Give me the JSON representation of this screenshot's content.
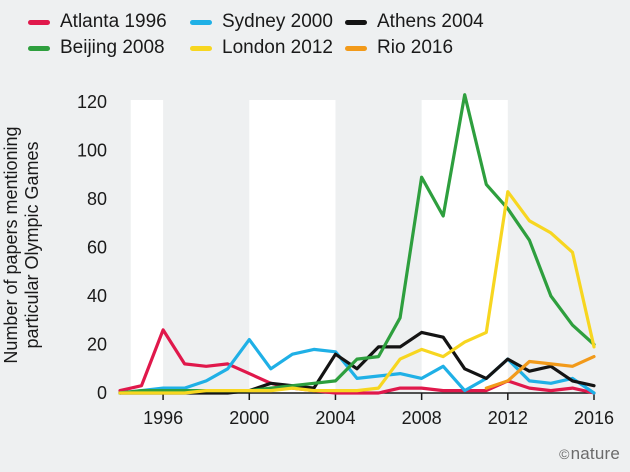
{
  "chart_data": {
    "type": "line",
    "ylabel_lines": [
      "Number of papers mentioning",
      "particular Olympic Games"
    ],
    "ylim": [
      0,
      120
    ],
    "yticks": [
      0,
      20,
      40,
      60,
      80,
      100,
      120
    ],
    "xlim": [
      1994,
      2016
    ],
    "xticks": [
      1996,
      2000,
      2004,
      2008,
      2012,
      2016
    ],
    "xtick_labels": [
      "1996",
      "2000",
      "2004",
      "2008",
      "2012",
      "2016"
    ],
    "grid": false,
    "shaded_bands": [
      [
        1994.5,
        1996
      ],
      [
        2000,
        2004
      ],
      [
        2008,
        2012
      ]
    ],
    "legend_position": "top",
    "series": [
      {
        "name": "Atlanta 1996",
        "color": "#e0184b",
        "x": [
          1994,
          1995,
          1996,
          1997,
          1998,
          1999,
          2000,
          2001,
          2002,
          2003,
          2004,
          2005,
          2006,
          2007,
          2008,
          2009,
          2010,
          2011,
          2012,
          2013,
          2014,
          2015,
          2016
        ],
        "values": [
          1,
          3,
          26,
          12,
          11,
          12,
          8,
          4,
          2,
          1,
          0,
          0,
          0,
          2,
          2,
          1,
          1,
          1,
          5,
          2,
          1,
          2,
          0
        ]
      },
      {
        "name": "Sydney 2000",
        "color": "#1fb0e6",
        "x": [
          1994,
          1995,
          1996,
          1997,
          1998,
          1999,
          2000,
          2001,
          2002,
          2003,
          2004,
          2005,
          2006,
          2007,
          2008,
          2009,
          2010,
          2011,
          2012,
          2013,
          2014,
          2015,
          2016
        ],
        "values": [
          0,
          1,
          2,
          2,
          5,
          10,
          22,
          10,
          16,
          18,
          17,
          6,
          7,
          8,
          6,
          11,
          1,
          6,
          14,
          5,
          4,
          6,
          0
        ]
      },
      {
        "name": "Athens 2004",
        "color": "#141414",
        "x": [
          1994,
          1995,
          1996,
          1997,
          1998,
          1999,
          2000,
          2001,
          2002,
          2003,
          2004,
          2005,
          2006,
          2007,
          2008,
          2009,
          2010,
          2011,
          2012,
          2013,
          2014,
          2015,
          2016
        ],
        "values": [
          0,
          0,
          0,
          0,
          0,
          0,
          1,
          4,
          3,
          2,
          16,
          10,
          19,
          19,
          25,
          23,
          10,
          6,
          14,
          9,
          11,
          5,
          3
        ]
      },
      {
        "name": "Beijing 2008",
        "color": "#2e9f3e",
        "x": [
          1994,
          1995,
          1996,
          1997,
          1998,
          1999,
          2000,
          2001,
          2002,
          2003,
          2004,
          2005,
          2006,
          2007,
          2008,
          2009,
          2010,
          2011,
          2012,
          2013,
          2014,
          2015,
          2016
        ],
        "values": [
          0,
          1,
          1,
          1,
          1,
          1,
          1,
          2,
          3,
          4,
          5,
          14,
          15,
          31,
          89,
          73,
          123,
          86,
          76,
          63,
          40,
          28,
          20
        ]
      },
      {
        "name": "London 2012",
        "color": "#f7d620",
        "x": [
          1994,
          1995,
          1996,
          1997,
          1998,
          1999,
          2000,
          2001,
          2002,
          2003,
          2004,
          2005,
          2006,
          2007,
          2008,
          2009,
          2010,
          2011,
          2012,
          2013,
          2014,
          2015,
          2016
        ],
        "values": [
          0,
          0,
          0,
          0,
          1,
          1,
          1,
          1,
          2,
          1,
          1,
          1,
          2,
          14,
          18,
          15,
          21,
          25,
          83,
          71,
          66,
          58,
          19
        ]
      },
      {
        "name": "Rio 2016",
        "color": "#f29a1a",
        "x": [
          2011,
          2012,
          2013,
          2014,
          2015,
          2016
        ],
        "values": [
          2,
          5,
          13,
          12,
          11,
          15
        ]
      }
    ]
  },
  "credit": {
    "symbol": "©",
    "text": "nature"
  }
}
